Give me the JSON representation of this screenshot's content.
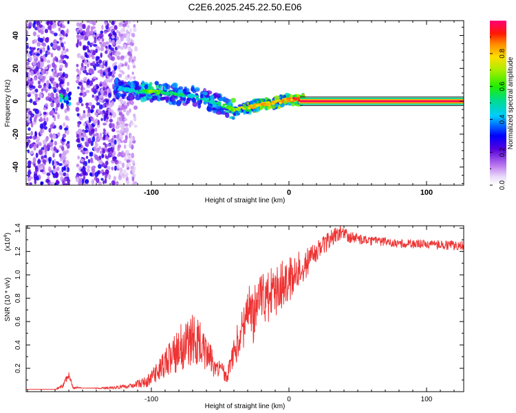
{
  "title": "C2E6.2025.245.22.50.E06",
  "chart_data": [
    {
      "type": "heatmap",
      "panel": "top",
      "xlabel": "Height of straight line (km)",
      "ylabel": "Frequency (Hz)",
      "xlim": [
        -191,
        127
      ],
      "ylim": [
        -51,
        49
      ],
      "xticks": [
        -100,
        0,
        100
      ],
      "xtick_labels": [
        "-100",
        "0",
        "100"
      ],
      "yticks": [
        -40,
        -20,
        0,
        20,
        40
      ],
      "ytick_labels": [
        "-40",
        "-20",
        "0",
        "20",
        "40"
      ],
      "colorbar": {
        "label": "Normalized spectral amplitude",
        "range": [
          0.0,
          1.0
        ],
        "ticks": [
          0.0,
          0.2,
          0.4,
          0.6,
          0.8
        ],
        "tick_labels": [
          "0.0",
          "0.2",
          "0.4",
          "0.6",
          "0.8"
        ]
      },
      "trace": {
        "x": [
          -125,
          -110,
          -100,
          -90,
          -80,
          -70,
          -60,
          -50,
          -40,
          -30,
          -20,
          -10,
          0,
          5,
          10,
          127
        ],
        "y": [
          8,
          6,
          6,
          5,
          4,
          3,
          1,
          -2,
          -5,
          -4,
          -2,
          -1,
          1,
          1,
          1,
          1
        ],
        "amplitude": [
          0.45,
          0.5,
          0.7,
          0.55,
          0.55,
          0.5,
          0.5,
          0.55,
          0.75,
          0.8,
          0.85,
          0.85,
          0.9,
          0.95,
          1.0,
          1.0
        ]
      },
      "noise_region_x": [
        -191,
        -112
      ],
      "gap_x": [
        -160,
        -154
      ]
    },
    {
      "type": "line",
      "panel": "bottom",
      "xlabel": "Height of straight line (km)",
      "ylabel": "SNR (10 * v/v)",
      "scale_label": "(x10",
      "scale_exp": "4",
      "scale_close": ")",
      "xlim": [
        -191,
        127
      ],
      "ylim": [
        0.0,
        1.42
      ],
      "xticks": [
        -100,
        0,
        100
      ],
      "xtick_labels": [
        "-100",
        "0",
        "100"
      ],
      "yticks": [
        0.2,
        0.4,
        0.6,
        0.8,
        1.0,
        1.2,
        1.4
      ],
      "ytick_labels": [
        "0.2",
        "0.4",
        "0.6",
        "0.8",
        "1.0",
        "1.2",
        "1.4"
      ],
      "series": [
        {
          "name": "SNR",
          "color": "#ee3333",
          "x": [
            -191,
            -170,
            -165,
            -160,
            -157,
            -150,
            -130,
            -115,
            -100,
            -90,
            -80,
            -70,
            -62,
            -55,
            -45,
            -35,
            -30,
            -25,
            -20,
            -10,
            0,
            10,
            20,
            30,
            38,
            45,
            60,
            80,
            100,
            127
          ],
          "y": [
            0.02,
            0.02,
            0.04,
            0.14,
            0.04,
            0.03,
            0.03,
            0.05,
            0.1,
            0.2,
            0.3,
            0.35,
            0.32,
            0.2,
            0.12,
            0.45,
            0.58,
            0.6,
            0.72,
            0.8,
            0.9,
            1.05,
            1.2,
            1.3,
            1.37,
            1.32,
            1.29,
            1.27,
            1.26,
            1.25
          ],
          "spread": [
            0.0,
            0.0,
            0.02,
            0.03,
            0.02,
            0.0,
            0.01,
            0.02,
            0.06,
            0.12,
            0.2,
            0.25,
            0.22,
            0.1,
            0.06,
            0.2,
            0.24,
            0.28,
            0.25,
            0.22,
            0.22,
            0.15,
            0.1,
            0.08,
            0.06,
            0.05,
            0.04,
            0.04,
            0.04,
            0.04
          ]
        }
      ]
    }
  ]
}
